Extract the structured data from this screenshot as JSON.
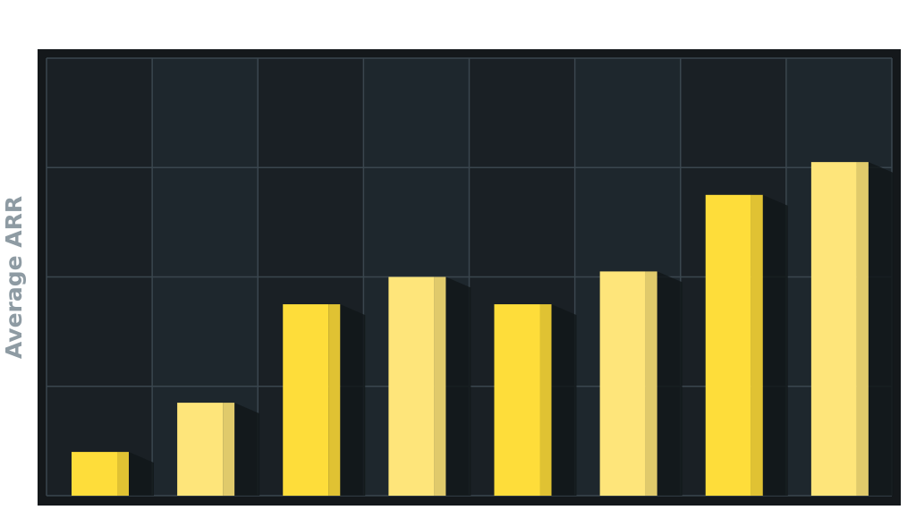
{
  "chart_data": {
    "type": "bar",
    "y_label": "Average ARR",
    "categories": [
      null,
      null,
      null,
      null,
      null,
      null,
      null,
      null
    ],
    "values": [
      0.4,
      0.85,
      1.75,
      2.0,
      1.75,
      2.05,
      2.75,
      3.05
    ],
    "colors": [
      "#fedd3a",
      "#fee57a",
      "#fedd3a",
      "#fee57a",
      "#fedd3a",
      "#fee57a",
      "#fedd3a",
      "#fee57a"
    ],
    "ylim": [
      0,
      4
    ],
    "yticks": [
      0,
      1,
      2,
      3,
      4
    ],
    "grid": true
  }
}
